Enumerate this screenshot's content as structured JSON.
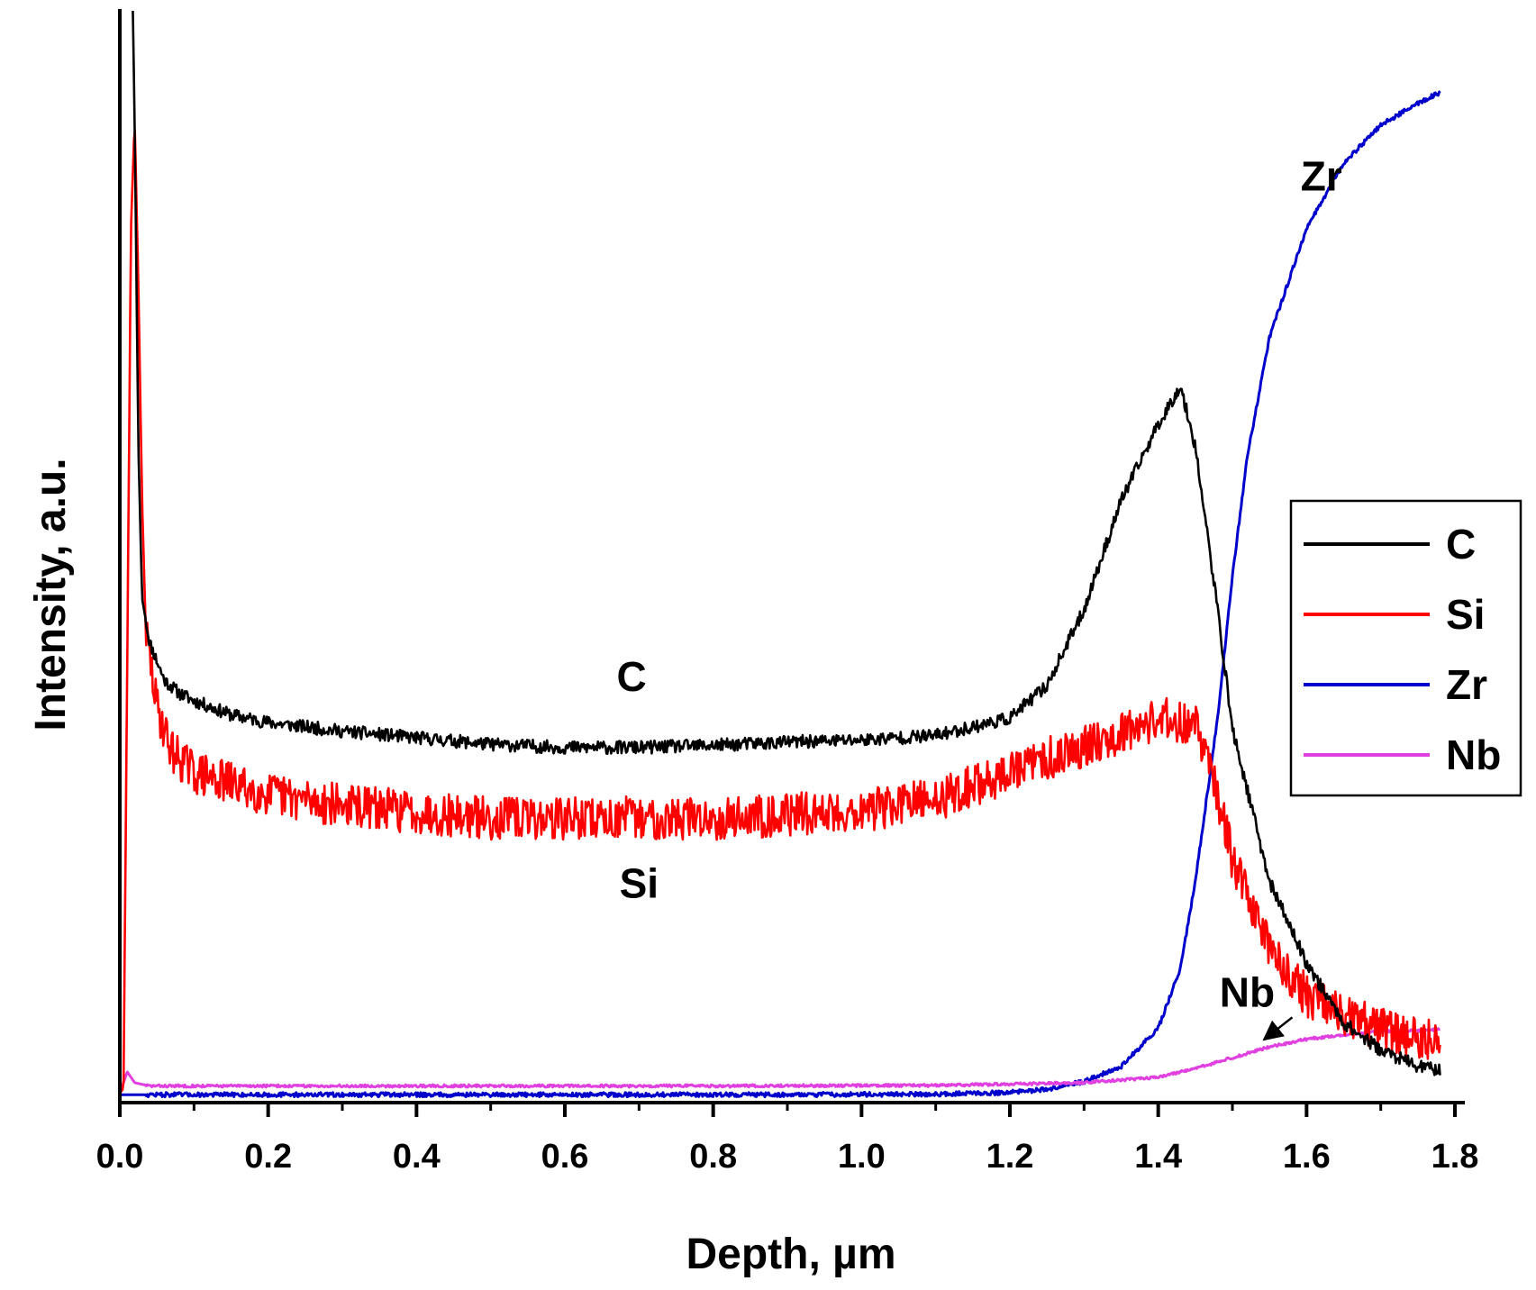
{
  "chart_data": {
    "type": "line",
    "xlabel": "Depth, µm",
    "ylabel": "Intensity, a.u.",
    "xlim": [
      0.0,
      1.8
    ],
    "ylim": [
      0,
      100
    ],
    "x_ticks": [
      "0.0",
      "0.2",
      "0.4",
      "0.6",
      "0.8",
      "1.0",
      "1.2",
      "1.4",
      "1.6",
      "1.8"
    ],
    "y_ticks": [],
    "grid": false,
    "legend_position": "right",
    "series": [
      {
        "name": "C",
        "color": "#000000",
        "noise": 0.6,
        "points": [
          [
            0.0,
            100
          ],
          [
            0.005,
            110
          ],
          [
            0.01,
            105
          ],
          [
            0.015,
            110
          ],
          [
            0.02,
            90
          ],
          [
            0.025,
            60
          ],
          [
            0.03,
            46
          ],
          [
            0.04,
            42
          ],
          [
            0.06,
            38.5
          ],
          [
            0.08,
            37.3
          ],
          [
            0.1,
            36.6
          ],
          [
            0.15,
            35.3
          ],
          [
            0.2,
            34.6
          ],
          [
            0.3,
            33.8
          ],
          [
            0.4,
            33.2
          ],
          [
            0.5,
            32.6
          ],
          [
            0.6,
            32.3
          ],
          [
            0.7,
            32.3
          ],
          [
            0.8,
            32.5
          ],
          [
            0.9,
            32.8
          ],
          [
            1.0,
            33.0
          ],
          [
            1.1,
            33.4
          ],
          [
            1.2,
            35.0
          ],
          [
            1.25,
            38.0
          ],
          [
            1.3,
            45.0
          ],
          [
            1.35,
            55.0
          ],
          [
            1.4,
            62.0
          ],
          [
            1.43,
            65.5
          ],
          [
            1.45,
            60.0
          ],
          [
            1.48,
            45.0
          ],
          [
            1.5,
            34.0
          ],
          [
            1.55,
            20.0
          ],
          [
            1.6,
            12.5
          ],
          [
            1.65,
            7.0
          ],
          [
            1.7,
            4.5
          ],
          [
            1.75,
            3.0
          ],
          [
            1.78,
            2.7
          ]
        ]
      },
      {
        "name": "Si",
        "color": "#ff0000",
        "noise": 2.0,
        "points": [
          [
            0.0,
            0.5
          ],
          [
            0.005,
            1.0
          ],
          [
            0.01,
            40.0
          ],
          [
            0.015,
            80.0
          ],
          [
            0.02,
            90.0
          ],
          [
            0.025,
            75.0
          ],
          [
            0.03,
            55.0
          ],
          [
            0.035,
            43.0
          ],
          [
            0.05,
            36.0
          ],
          [
            0.07,
            32.0
          ],
          [
            0.1,
            30.0
          ],
          [
            0.2,
            28.0
          ],
          [
            0.3,
            27.0
          ],
          [
            0.5,
            25.8
          ],
          [
            0.6,
            25.8
          ],
          [
            0.8,
            25.8
          ],
          [
            1.0,
            26.5
          ],
          [
            1.1,
            27.5
          ],
          [
            1.2,
            30.0
          ],
          [
            1.3,
            32.5
          ],
          [
            1.4,
            35.0
          ],
          [
            1.45,
            34.5
          ],
          [
            1.48,
            28.0
          ],
          [
            1.5,
            22.0
          ],
          [
            1.55,
            14.0
          ],
          [
            1.6,
            9.5
          ],
          [
            1.65,
            7.5
          ],
          [
            1.7,
            6.5
          ],
          [
            1.75,
            5.5
          ],
          [
            1.78,
            5.2
          ]
        ]
      },
      {
        "name": "Zr",
        "color": "#0000cc",
        "noise": 0.2,
        "points": [
          [
            0.0,
            0.4
          ],
          [
            0.3,
            0.4
          ],
          [
            0.6,
            0.4
          ],
          [
            0.9,
            0.4
          ],
          [
            1.1,
            0.45
          ],
          [
            1.2,
            0.6
          ],
          [
            1.25,
            0.9
          ],
          [
            1.3,
            1.6
          ],
          [
            1.35,
            3.0
          ],
          [
            1.4,
            6.5
          ],
          [
            1.43,
            12.0
          ],
          [
            1.45,
            20.0
          ],
          [
            1.48,
            35.0
          ],
          [
            1.5,
            48.0
          ],
          [
            1.52,
            59.0
          ],
          [
            1.55,
            70.0
          ],
          [
            1.6,
            80.0
          ],
          [
            1.65,
            86.0
          ],
          [
            1.7,
            89.5
          ],
          [
            1.75,
            91.5
          ],
          [
            1.78,
            92.5
          ]
        ]
      },
      {
        "name": "Nb",
        "color": "#e040e0",
        "noise": 0.12,
        "points": [
          [
            0.0,
            0.5
          ],
          [
            0.005,
            1.5
          ],
          [
            0.01,
            2.5
          ],
          [
            0.02,
            1.5
          ],
          [
            0.04,
            1.2
          ],
          [
            0.2,
            1.2
          ],
          [
            0.5,
            1.2
          ],
          [
            0.8,
            1.2
          ],
          [
            1.1,
            1.25
          ],
          [
            1.3,
            1.5
          ],
          [
            1.4,
            2.0
          ],
          [
            1.45,
            2.8
          ],
          [
            1.5,
            3.8
          ],
          [
            1.55,
            4.8
          ],
          [
            1.6,
            5.5
          ],
          [
            1.65,
            5.9
          ],
          [
            1.7,
            6.2
          ],
          [
            1.75,
            6.3
          ],
          [
            1.78,
            6.4
          ]
        ]
      }
    ],
    "annotations": [
      {
        "text": "C",
        "x": 0.69,
        "y": 37.5
      },
      {
        "text": "Si",
        "x": 0.7,
        "y": 18.5
      },
      {
        "text": "Zr",
        "x": 1.62,
        "y": 83.5
      },
      {
        "text": "Nb",
        "x": 1.52,
        "y": 8.5,
        "arrow_to": {
          "x": 1.55,
          "y": 4.8
        }
      }
    ]
  }
}
